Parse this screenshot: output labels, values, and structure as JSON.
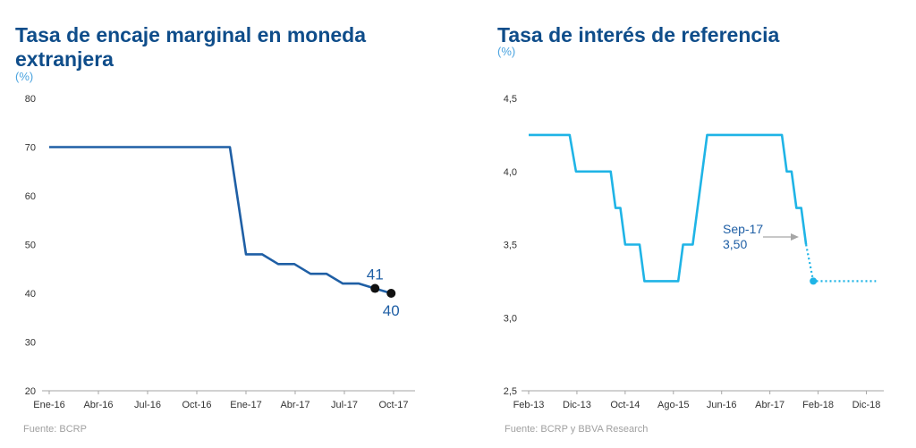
{
  "chart_data": [
    {
      "type": "line",
      "title": "Tasa de encaje marginal en moneda extranjera",
      "unit": "(%)",
      "source": "Fuente: BCRP",
      "ylim": [
        20,
        80
      ],
      "yticks": [
        "80",
        "70",
        "60",
        "50",
        "40",
        "30",
        "20"
      ],
      "xticks": [
        "Ene-16",
        "Abr-16",
        "Jul-16",
        "Oct-16",
        "Ene-17",
        "Abr-17",
        "Jul-17",
        "Oct-17"
      ],
      "color": "#1f5fa5",
      "series": [
        {
          "points": [
            [
              0,
              70
            ],
            [
              11.2,
              70
            ],
            [
              12.2,
              48
            ],
            [
              13.2,
              48
            ],
            [
              14.2,
              46
            ],
            [
              15.2,
              46
            ],
            [
              16.2,
              44
            ],
            [
              17.2,
              44
            ],
            [
              18.2,
              42
            ],
            [
              19.2,
              42
            ],
            [
              20.2,
              41
            ],
            [
              21.2,
              40
            ]
          ]
        }
      ],
      "markers": [
        {
          "x": 20.2,
          "y": 41,
          "label": "41"
        },
        {
          "x": 21.2,
          "y": 40,
          "label": "40"
        }
      ]
    },
    {
      "type": "line",
      "title": "Tasa de interés de referencia",
      "unit": "(%)",
      "source": "Fuente: BCRP y BBVA  Research",
      "ylim": [
        2.5,
        4.5
      ],
      "yticks": [
        "4,5",
        "4,0",
        "3,5",
        "3,0",
        "2,5"
      ],
      "xticks": [
        "Feb-13",
        "Dic-13",
        "Oct-14",
        "Ago-15",
        "Jun-16",
        "Abr-17",
        "Feb-18",
        "Dic-18"
      ],
      "color": "#1fb4e6",
      "series": [
        {
          "points": [
            [
              0,
              4.25
            ],
            [
              8.5,
              4.25
            ],
            [
              9.8,
              4.0
            ],
            [
              17.0,
              4.0
            ],
            [
              18.0,
              3.75
            ],
            [
              19.0,
              3.75
            ],
            [
              20.0,
              3.5
            ],
            [
              23.0,
              3.5
            ],
            [
              24.0,
              3.25
            ],
            [
              31.0,
              3.25
            ],
            [
              32.0,
              3.5
            ],
            [
              34.0,
              3.5
            ],
            [
              37.0,
              4.25
            ],
            [
              52.5,
              4.25
            ],
            [
              53.5,
              4.0
            ],
            [
              54.5,
              4.0
            ],
            [
              55.5,
              3.75
            ],
            [
              56.5,
              3.75
            ],
            [
              57.5,
              3.5
            ]
          ]
        },
        {
          "style": "dotted",
          "points": [
            [
              57.5,
              3.5
            ],
            [
              59.0,
              3.25
            ],
            [
              72.0,
              3.25
            ]
          ]
        }
      ],
      "markers": [
        {
          "x": 59.0,
          "y": 3.25,
          "label": ""
        }
      ],
      "annotation": {
        "line1": "Sep-17",
        "line2": "3,50"
      }
    }
  ]
}
